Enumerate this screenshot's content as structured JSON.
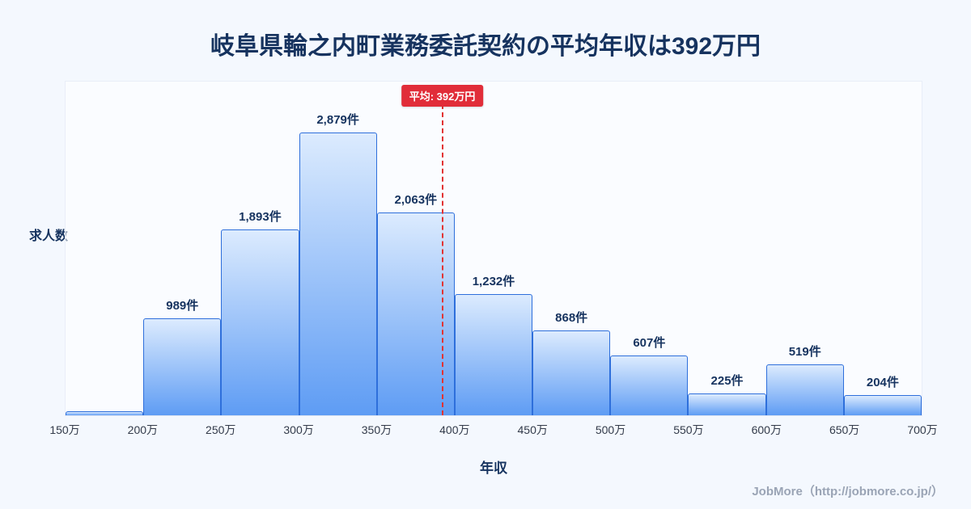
{
  "page": {
    "title": "岐阜県輪之内町業務委託契約の平均年収は392万円",
    "footer": "JobMore（http://jobmore.co.jp/）"
  },
  "chart_data": {
    "type": "bar",
    "title": "岐阜県輪之内町業務委託契約の平均年収は392万円",
    "xlabel": "年収",
    "ylabel": "求人数",
    "x_range": [
      150,
      700
    ],
    "bin_width": 50,
    "ylim": [
      0,
      3400
    ],
    "grid": false,
    "legend": "none",
    "x_tick_labels": [
      "150万",
      "200万",
      "250万",
      "300万",
      "350万",
      "400万",
      "450万",
      "500万",
      "550万",
      "600万",
      "650万",
      "700万"
    ],
    "bins": [
      {
        "range": "150万-200万",
        "value": 40,
        "label": ""
      },
      {
        "range": "200万-250万",
        "value": 989,
        "label": "989件"
      },
      {
        "range": "250万-300万",
        "value": 1893,
        "label": "1,893件"
      },
      {
        "range": "300万-350万",
        "value": 2879,
        "label": "2,879件"
      },
      {
        "range": "350万-400万",
        "value": 2063,
        "label": "2,063件"
      },
      {
        "range": "400万-450万",
        "value": 1232,
        "label": "1,232件"
      },
      {
        "range": "450万-500万",
        "value": 868,
        "label": "868件"
      },
      {
        "range": "500万-550万",
        "value": 607,
        "label": "607件"
      },
      {
        "range": "550万-600万",
        "value": 225,
        "label": "225件"
      },
      {
        "range": "600万-650万",
        "value": 519,
        "label": "519件"
      },
      {
        "range": "650万-700万",
        "value": 204,
        "label": "204件"
      }
    ],
    "average": {
      "value": 392,
      "label": "平均: 392万円"
    },
    "colors": {
      "page_bg": "#f4f8fe",
      "title_text": "#16335f",
      "label_text": "#16335f",
      "tick_text": "#333b4a",
      "bar_fill_top": "#dcebfe",
      "bar_fill_bottom": "#5e9cf4",
      "bar_border": "#2e6fdb",
      "average_line": "#e23333",
      "average_badge_bg": "#e12d39",
      "average_badge_text": "#ffffff",
      "footer_text": "#9aa4b5"
    }
  }
}
